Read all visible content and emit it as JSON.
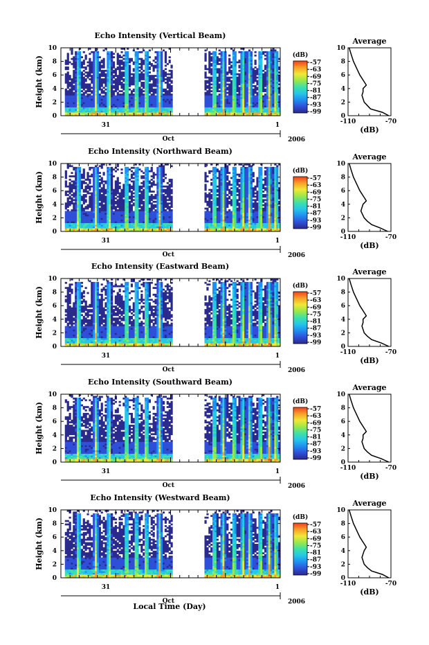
{
  "chart_data": {
    "type": "heatmap",
    "xlabel": "Local Time (Day)",
    "month_label": "Oct",
    "year_label": "2006",
    "day_ticks": [
      "31",
      "1"
    ],
    "colorbar": {
      "unit": "(dB)",
      "range": [
        -99,
        -57
      ],
      "ticks": [
        "-57",
        "-63",
        "-69",
        "-75",
        "-81",
        "-87",
        "-93",
        "-99"
      ],
      "colors": [
        "#2a2a8c",
        "#2f4fd8",
        "#1f8ff0",
        "#26c6e8",
        "#3ee0a8",
        "#9ae84a",
        "#f0e838",
        "#f8a028",
        "#f04020"
      ]
    },
    "height_axis": {
      "label": "Height (km)",
      "range": [
        0,
        10
      ],
      "ticks": [
        "0",
        "2",
        "4",
        "6",
        "8",
        "10"
      ]
    },
    "average_axis": {
      "title": "Average",
      "label": "(dB)",
      "range": [
        -110,
        -70
      ],
      "ticks": [
        "-110",
        "-70"
      ]
    },
    "panels": [
      {
        "title": "Echo Intensity (Vertical Beam)",
        "beam": "vertical",
        "average_profile": [
          {
            "h": 0,
            "v": -72
          },
          {
            "h": 0.5,
            "v": -78
          },
          {
            "h": 1,
            "v": -89
          },
          {
            "h": 1.5,
            "v": -92
          },
          {
            "h": 2,
            "v": -95
          },
          {
            "h": 3,
            "v": -97
          },
          {
            "h": 3.5,
            "v": -96
          },
          {
            "h": 4,
            "v": -96
          },
          {
            "h": 4.5,
            "v": -93
          },
          {
            "h": 5,
            "v": -95
          },
          {
            "h": 6,
            "v": -99
          },
          {
            "h": 7,
            "v": -102
          },
          {
            "h": 8,
            "v": -105
          },
          {
            "h": 9,
            "v": -107
          },
          {
            "h": 10,
            "v": -109
          }
        ]
      },
      {
        "title": "Echo Intensity (Northward Beam)",
        "beam": "northward",
        "average_profile": [
          {
            "h": 0,
            "v": -73
          },
          {
            "h": 0.5,
            "v": -80
          },
          {
            "h": 1,
            "v": -88
          },
          {
            "h": 1.5,
            "v": -92
          },
          {
            "h": 2,
            "v": -95
          },
          {
            "h": 3,
            "v": -98
          },
          {
            "h": 3.5,
            "v": -97
          },
          {
            "h": 4,
            "v": -96
          },
          {
            "h": 4.5,
            "v": -93
          },
          {
            "h": 5,
            "v": -95
          },
          {
            "h": 6,
            "v": -99
          },
          {
            "h": 7,
            "v": -102
          },
          {
            "h": 8,
            "v": -105
          },
          {
            "h": 9,
            "v": -107
          },
          {
            "h": 10,
            "v": -109
          }
        ]
      },
      {
        "title": "Echo Intensity (Eastward Beam)",
        "beam": "eastward",
        "average_profile": [
          {
            "h": 0,
            "v": -72
          },
          {
            "h": 0.5,
            "v": -79
          },
          {
            "h": 1,
            "v": -88
          },
          {
            "h": 1.5,
            "v": -92
          },
          {
            "h": 2,
            "v": -95
          },
          {
            "h": 3,
            "v": -97
          },
          {
            "h": 3.5,
            "v": -96
          },
          {
            "h": 4,
            "v": -96
          },
          {
            "h": 4.5,
            "v": -93
          },
          {
            "h": 5,
            "v": -95
          },
          {
            "h": 6,
            "v": -99
          },
          {
            "h": 7,
            "v": -102
          },
          {
            "h": 8,
            "v": -105
          },
          {
            "h": 9,
            "v": -107
          },
          {
            "h": 10,
            "v": -109
          }
        ]
      },
      {
        "title": "Echo Intensity (Southward Beam)",
        "beam": "southward",
        "average_profile": [
          {
            "h": 0,
            "v": -72
          },
          {
            "h": 0.5,
            "v": -79
          },
          {
            "h": 1,
            "v": -88
          },
          {
            "h": 1.5,
            "v": -92
          },
          {
            "h": 2,
            "v": -95
          },
          {
            "h": 3,
            "v": -97
          },
          {
            "h": 3.5,
            "v": -96
          },
          {
            "h": 4,
            "v": -96
          },
          {
            "h": 4.5,
            "v": -93
          },
          {
            "h": 5,
            "v": -95
          },
          {
            "h": 6,
            "v": -99
          },
          {
            "h": 7,
            "v": -102
          },
          {
            "h": 8,
            "v": -105
          },
          {
            "h": 9,
            "v": -107
          },
          {
            "h": 10,
            "v": -109
          }
        ]
      },
      {
        "title": "Echo Intensity (Westward Beam)",
        "beam": "westward",
        "average_profile": [
          {
            "h": 0,
            "v": -72
          },
          {
            "h": 0.5,
            "v": -78
          },
          {
            "h": 1,
            "v": -88
          },
          {
            "h": 1.5,
            "v": -92
          },
          {
            "h": 2,
            "v": -95
          },
          {
            "h": 3,
            "v": -97
          },
          {
            "h": 3.5,
            "v": -96
          },
          {
            "h": 4,
            "v": -95
          },
          {
            "h": 4.5,
            "v": -93
          },
          {
            "h": 5,
            "v": -95
          },
          {
            "h": 6,
            "v": -99
          },
          {
            "h": 7,
            "v": -102
          },
          {
            "h": 8,
            "v": -105
          },
          {
            "h": 9,
            "v": -107
          },
          {
            "h": 10,
            "v": -109
          }
        ]
      }
    ]
  }
}
